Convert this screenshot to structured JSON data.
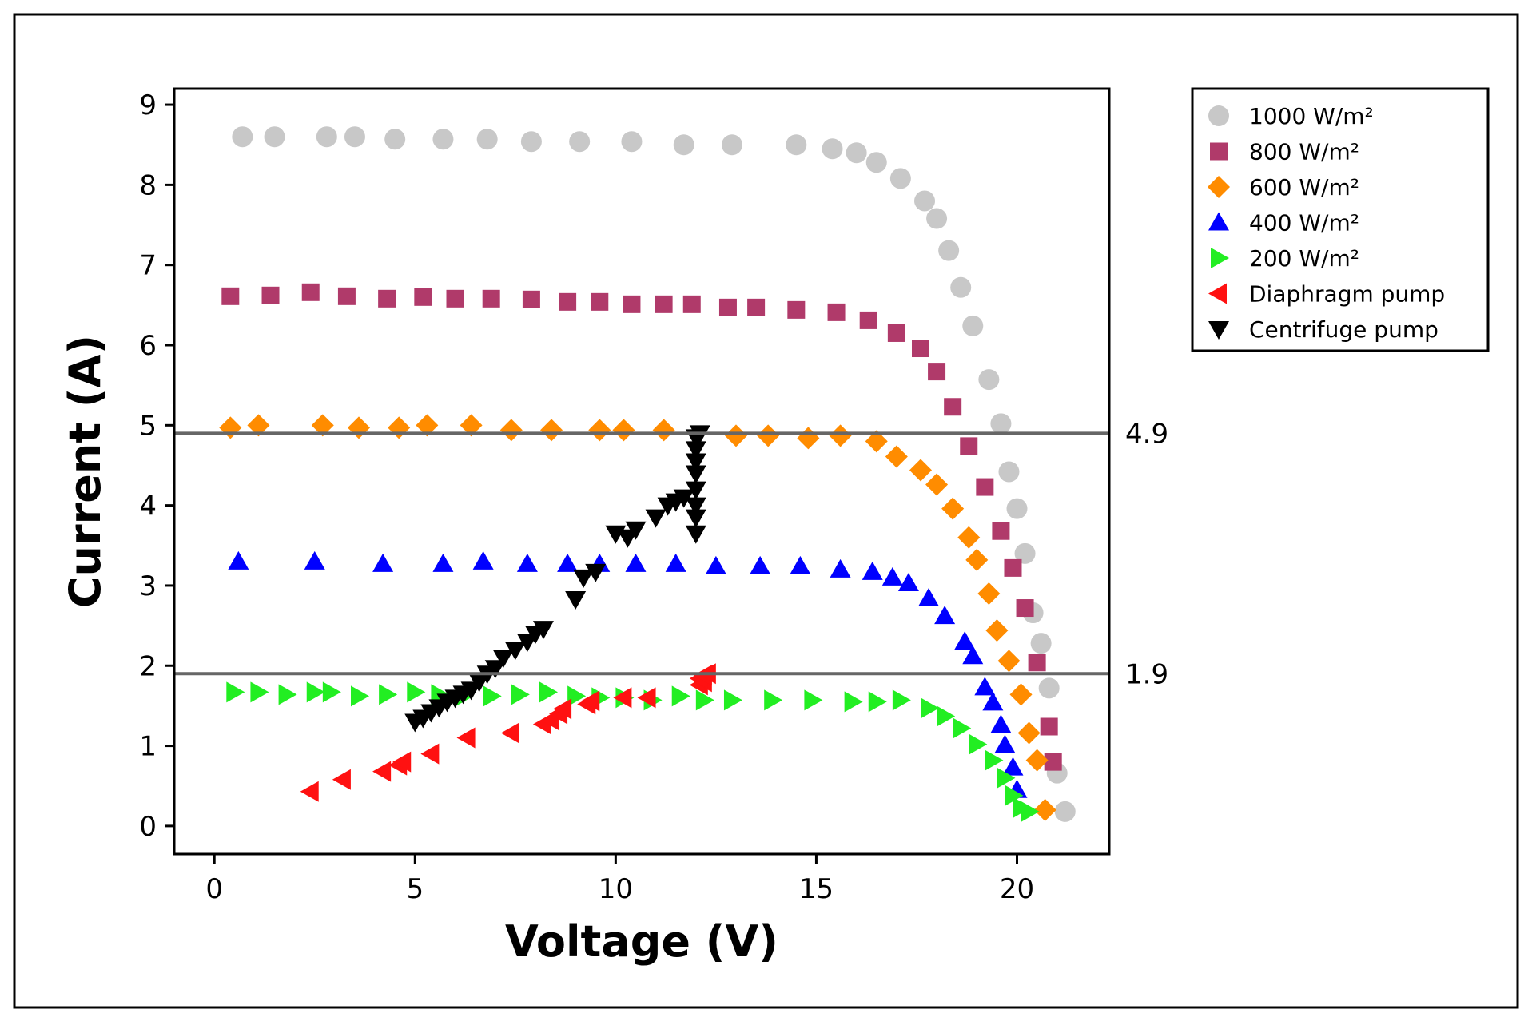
{
  "chart_data": {
    "type": "scatter",
    "title": "",
    "xlabel": "Voltage (V)",
    "ylabel": "Current (A)",
    "xlim": [
      -1,
      22.3
    ],
    "ylim": [
      -0.35,
      9.2
    ],
    "xticks": [
      0,
      5,
      10,
      15,
      20
    ],
    "yticks": [
      0,
      1,
      2,
      3,
      4,
      5,
      6,
      7,
      8,
      9
    ],
    "grid": false,
    "legend_position": "top-right outside",
    "reference_lines": [
      {
        "y": 4.9,
        "label": "4.9",
        "color": "#666666"
      },
      {
        "y": 1.9,
        "label": "1.9",
        "color": "#666666"
      }
    ],
    "series": [
      {
        "name": "1000 W/m²",
        "marker": "circle",
        "color": "#c8c8c8",
        "x": [
          0.7,
          1.5,
          2.8,
          3.5,
          4.5,
          5.7,
          6.8,
          7.9,
          9.1,
          10.4,
          11.7,
          12.9,
          14.5,
          15.4,
          16.0,
          16.5,
          17.1,
          17.7,
          18.0,
          18.3,
          18.6,
          18.9,
          19.3,
          19.6,
          19.8,
          20.0,
          20.2,
          20.4,
          20.6,
          20.8,
          21.0,
          21.2
        ],
        "y": [
          8.6,
          8.6,
          8.6,
          8.6,
          8.57,
          8.57,
          8.57,
          8.54,
          8.54,
          8.54,
          8.5,
          8.5,
          8.5,
          8.45,
          8.4,
          8.28,
          8.08,
          7.8,
          7.58,
          7.18,
          6.72,
          6.24,
          5.57,
          5.02,
          4.42,
          3.96,
          3.4,
          2.66,
          2.28,
          1.72,
          0.66,
          0.18
        ]
      },
      {
        "name": "800 W/m²",
        "marker": "square",
        "color": "#b03a6a",
        "x": [
          0.4,
          1.4,
          2.4,
          3.3,
          4.3,
          5.2,
          6.0,
          6.9,
          7.9,
          8.8,
          9.6,
          10.4,
          11.2,
          11.9,
          12.8,
          13.5,
          14.5,
          15.5,
          16.3,
          17.0,
          17.6,
          18.0,
          18.4,
          18.8,
          19.2,
          19.6,
          19.9,
          20.2,
          20.5,
          20.8,
          20.9
        ],
        "y": [
          6.61,
          6.62,
          6.66,
          6.61,
          6.58,
          6.6,
          6.58,
          6.58,
          6.57,
          6.54,
          6.54,
          6.51,
          6.51,
          6.51,
          6.47,
          6.47,
          6.44,
          6.41,
          6.31,
          6.15,
          5.96,
          5.67,
          5.23,
          4.74,
          4.23,
          3.68,
          3.22,
          2.72,
          2.04,
          1.24,
          0.8
        ]
      },
      {
        "name": "600 W/m²",
        "marker": "diamond",
        "color": "#ff8c00",
        "x": [
          0.4,
          1.1,
          2.7,
          3.6,
          4.6,
          5.3,
          6.4,
          7.4,
          8.4,
          9.6,
          10.2,
          11.2,
          13.0,
          13.8,
          14.8,
          15.6,
          16.5,
          17.0,
          17.6,
          18.0,
          18.4,
          18.8,
          19.0,
          19.3,
          19.5,
          19.8,
          20.1,
          20.3,
          20.5,
          20.7
        ],
        "y": [
          4.97,
          5.0,
          5.0,
          4.97,
          4.97,
          5.0,
          5.0,
          4.94,
          4.94,
          4.94,
          4.94,
          4.94,
          4.87,
          4.87,
          4.84,
          4.87,
          4.8,
          4.61,
          4.44,
          4.26,
          3.96,
          3.6,
          3.32,
          2.9,
          2.44,
          2.06,
          1.64,
          1.16,
          0.82,
          0.2
        ]
      },
      {
        "name": "400 W/m²",
        "marker": "triangle-up",
        "color": "#0000ff",
        "x": [
          0.6,
          2.5,
          4.2,
          5.7,
          6.7,
          7.8,
          8.8,
          9.6,
          10.5,
          11.5,
          12.5,
          13.6,
          14.6,
          15.6,
          16.4,
          16.9,
          17.3,
          17.8,
          18.2,
          18.7,
          18.9,
          19.2,
          19.4,
          19.6,
          19.7,
          19.9,
          20.0
        ],
        "y": [
          3.3,
          3.3,
          3.27,
          3.27,
          3.3,
          3.27,
          3.27,
          3.27,
          3.27,
          3.27,
          3.24,
          3.24,
          3.24,
          3.2,
          3.17,
          3.1,
          3.03,
          2.84,
          2.62,
          2.3,
          2.12,
          1.73,
          1.54,
          1.26,
          1.01,
          0.73,
          0.45
        ]
      },
      {
        "name": "200 W/m²",
        "marker": "triangle-right",
        "color": "#22ee22",
        "x": [
          0.5,
          1.1,
          1.8,
          2.5,
          2.9,
          3.6,
          4.3,
          5.0,
          5.6,
          6.2,
          6.9,
          7.6,
          8.3,
          9.0,
          9.6,
          10.2,
          10.9,
          11.6,
          12.2,
          12.9,
          13.9,
          14.9,
          15.9,
          16.5,
          17.1,
          17.8,
          18.2,
          18.6,
          19.0,
          19.4,
          19.7,
          19.9,
          20.1,
          20.3
        ],
        "y": [
          1.67,
          1.67,
          1.64,
          1.67,
          1.67,
          1.62,
          1.64,
          1.67,
          1.64,
          1.62,
          1.62,
          1.64,
          1.67,
          1.62,
          1.6,
          1.6,
          1.57,
          1.62,
          1.57,
          1.57,
          1.57,
          1.57,
          1.55,
          1.55,
          1.57,
          1.47,
          1.37,
          1.22,
          1.02,
          0.82,
          0.6,
          0.38,
          0.23,
          0.18
        ]
      },
      {
        "name": "Diaphragm pump",
        "marker": "triangle-left",
        "color": "#ff1111",
        "x": [
          2.4,
          3.2,
          4.2,
          4.6,
          4.7,
          5.4,
          6.3,
          7.4,
          8.2,
          8.4,
          8.6,
          8.7,
          9.3,
          9.4,
          10.2,
          10.8,
          12.1,
          12.2,
          12.1,
          12.2,
          12.3
        ],
        "y": [
          0.43,
          0.58,
          0.68,
          0.76,
          0.8,
          0.9,
          1.1,
          1.16,
          1.27,
          1.32,
          1.4,
          1.46,
          1.52,
          1.56,
          1.6,
          1.6,
          1.76,
          1.8,
          1.84,
          1.88,
          1.9
        ]
      },
      {
        "name": "Centrifuge pump",
        "marker": "triangle-down",
        "color": "#000000",
        "x": [
          5.0,
          5.2,
          5.4,
          5.6,
          5.8,
          6.0,
          6.2,
          6.4,
          6.6,
          6.8,
          7.0,
          7.2,
          7.5,
          7.8,
          8.0,
          8.2,
          9.0,
          9.2,
          9.5,
          10.0,
          10.3,
          10.5,
          11.0,
          11.3,
          11.5,
          11.7,
          12.0,
          12.0,
          12.0,
          12.0,
          12.0,
          12.0,
          12.0,
          12.0,
          12.1
        ],
        "y": [
          1.3,
          1.35,
          1.42,
          1.48,
          1.55,
          1.6,
          1.65,
          1.7,
          1.8,
          1.9,
          1.97,
          2.1,
          2.2,
          2.3,
          2.4,
          2.46,
          2.83,
          3.1,
          3.17,
          3.65,
          3.6,
          3.7,
          3.85,
          4.0,
          4.05,
          4.1,
          3.65,
          3.85,
          4.0,
          4.2,
          4.4,
          4.55,
          4.7,
          4.85,
          4.9
        ]
      }
    ]
  }
}
